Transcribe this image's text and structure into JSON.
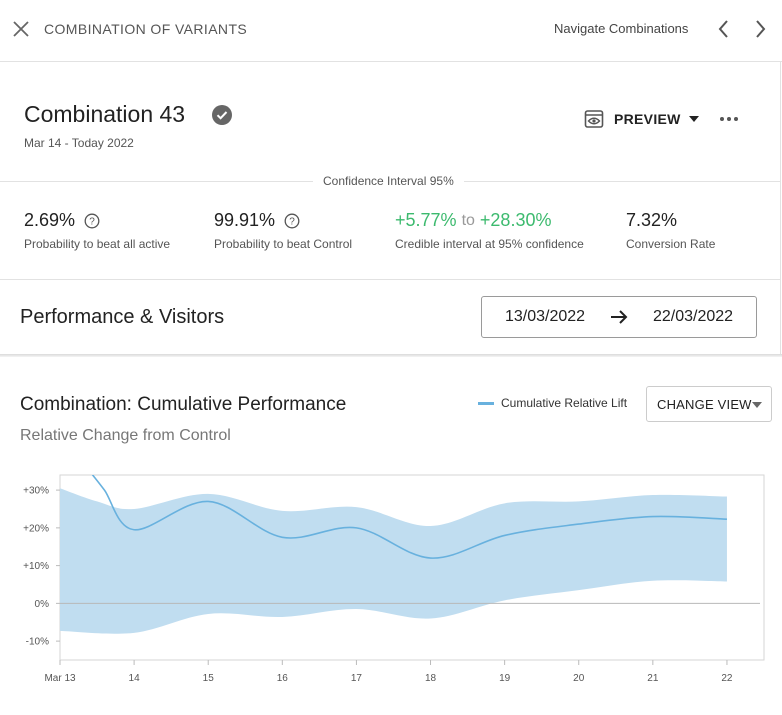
{
  "topbar": {
    "title": "COMBINATION OF VARIANTS",
    "nav_label": "Navigate Combinations"
  },
  "header": {
    "title": "Combination 43",
    "dates": "Mar 14 - Today 2022",
    "preview_label": "PREVIEW"
  },
  "stats": {
    "confidence_label": "Confidence Interval 95%",
    "beat_all": {
      "value": "2.69%",
      "label": "Probability to beat all active"
    },
    "beat_control": {
      "value": "99.91%",
      "label": "Probability to beat Control"
    },
    "credible": {
      "low": "+5.77%",
      "to": "to",
      "high": "+28.30%",
      "label": "Credible interval at 95% confidence"
    },
    "conversion": {
      "value": "7.32%",
      "label": "Conversion Rate"
    }
  },
  "performance": {
    "title": "Performance & Visitors",
    "date_from": "13/03/2022",
    "date_to": "22/03/2022"
  },
  "chart_section": {
    "title": "Combination: Cumulative Performance",
    "subtitle": "Relative Change from Control",
    "legend_label": "Cumulative Relative Lift",
    "change_view_label": "CHANGE VIEW"
  },
  "colors": {
    "line": "#68b1de",
    "band": "#c0ddf0",
    "positive": "#3cba6e"
  },
  "chart_data": {
    "type": "area",
    "title": "Combination: Cumulative Performance",
    "subtitle": "Relative Change from Control",
    "x": [
      "Mar 13",
      "14",
      "15",
      "16",
      "17",
      "18",
      "19",
      "20",
      "21",
      "22"
    ],
    "xlim": [
      13,
      22.5
    ],
    "ylim": [
      -15,
      34
    ],
    "yticks": [
      -10,
      0,
      10,
      20,
      30
    ],
    "ytick_labels": [
      "-10%",
      "0%",
      "+10%",
      "+20%",
      "+30%"
    ],
    "grid": false,
    "series": [
      {
        "name": "Cumulative Relative Lift",
        "points": [
          [
            13.4,
            35
          ],
          [
            13.6,
            30
          ],
          [
            14,
            19.5
          ],
          [
            15,
            27
          ],
          [
            16,
            17.5
          ],
          [
            17,
            20
          ],
          [
            18,
            12
          ],
          [
            19,
            18
          ],
          [
            20,
            21
          ],
          [
            21,
            23
          ],
          [
            22,
            22.3
          ]
        ]
      }
    ],
    "band": {
      "upper": [
        [
          13,
          30.5
        ],
        [
          13.5,
          27
        ],
        [
          14,
          25
        ],
        [
          15,
          29
        ],
        [
          16,
          24.5
        ],
        [
          17,
          25.5
        ],
        [
          18,
          20.5
        ],
        [
          19,
          26.5
        ],
        [
          20,
          27
        ],
        [
          21,
          28.7
        ],
        [
          22,
          28.3
        ]
      ],
      "lower": [
        [
          13,
          -7.3
        ],
        [
          14,
          -7.8
        ],
        [
          15,
          -2.8
        ],
        [
          16,
          -3.6
        ],
        [
          17,
          -1.5
        ],
        [
          18,
          -4
        ],
        [
          19,
          0.8
        ],
        [
          20,
          3.5
        ],
        [
          21,
          6
        ],
        [
          22,
          5.8
        ]
      ]
    },
    "legend": "top-right"
  }
}
